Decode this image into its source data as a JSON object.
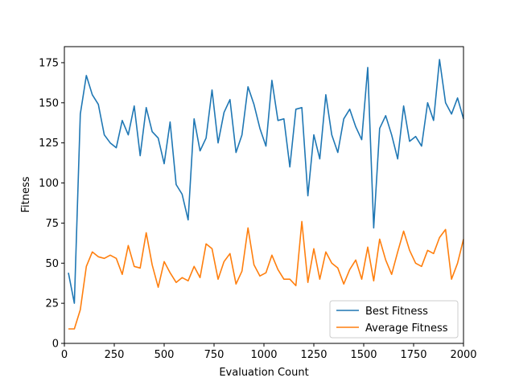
{
  "chart_data": {
    "type": "line",
    "title": "",
    "xlabel": "Evaluation Count",
    "ylabel": "Fitness",
    "xlim": [
      0,
      2000
    ],
    "ylim": [
      0,
      185
    ],
    "xticks": [
      0,
      250,
      500,
      750,
      1000,
      1250,
      1500,
      1750,
      2000
    ],
    "yticks": [
      0,
      25,
      50,
      75,
      100,
      125,
      150,
      175
    ],
    "grid": false,
    "legend_position": "bottom-right",
    "x": [
      20,
      50,
      80,
      110,
      140,
      170,
      200,
      230,
      260,
      290,
      320,
      350,
      380,
      410,
      440,
      470,
      500,
      530,
      560,
      590,
      620,
      650,
      680,
      710,
      740,
      770,
      800,
      830,
      860,
      890,
      920,
      950,
      980,
      1010,
      1040,
      1070,
      1100,
      1130,
      1160,
      1190,
      1220,
      1250,
      1280,
      1310,
      1340,
      1370,
      1400,
      1430,
      1460,
      1490,
      1520,
      1550,
      1580,
      1610,
      1640,
      1670,
      1700,
      1730,
      1760,
      1790,
      1820,
      1850,
      1880,
      1910,
      1940,
      1970,
      2000
    ],
    "series": [
      {
        "name": "Best Fitness",
        "color": "#1f77b4",
        "values": [
          44,
          25,
          143,
          167,
          155,
          149,
          130,
          125,
          122,
          139,
          130,
          148,
          117,
          147,
          132,
          128,
          112,
          138,
          99,
          93,
          77,
          140,
          120,
          128,
          158,
          125,
          144,
          152,
          119,
          130,
          160,
          149,
          134,
          123,
          164,
          139,
          140,
          110,
          146,
          147,
          92,
          130,
          115,
          155,
          130,
          119,
          140,
          146,
          135,
          127,
          172,
          72,
          134,
          142,
          130,
          115,
          148,
          126,
          129,
          123,
          150,
          139,
          177,
          150,
          143,
          153,
          140
        ]
      },
      {
        "name": "Average Fitness",
        "color": "#ff7f0e",
        "values": [
          9,
          9,
          21,
          48,
          57,
          54,
          53,
          55,
          53,
          43,
          61,
          48,
          47,
          69,
          49,
          35,
          51,
          44,
          38,
          41,
          39,
          48,
          41,
          62,
          59,
          40,
          51,
          56,
          37,
          45,
          72,
          49,
          42,
          44,
          55,
          46,
          40,
          40,
          36,
          76,
          38,
          59,
          40,
          57,
          50,
          47,
          37,
          46,
          52,
          40,
          60,
          39,
          65,
          52,
          43,
          57,
          70,
          58,
          50,
          48,
          58,
          56,
          66,
          71,
          40,
          50,
          65
        ]
      }
    ]
  }
}
